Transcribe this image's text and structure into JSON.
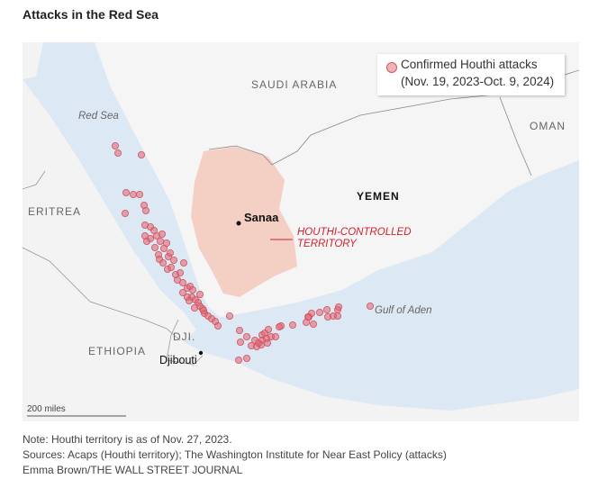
{
  "title": "Attacks in the Red Sea",
  "legend": {
    "line1": "Confirmed Houthi attacks",
    "line2": "(Nov. 19, 2023-Oct. 9, 2024)",
    "marker_color": "#f0b3b8",
    "marker_stroke": "#d25460"
  },
  "labels": {
    "saudi_arabia": "SAUDI ARABIA",
    "oman": "OMAN",
    "red_sea": "Red Sea",
    "eritrea": "ERITREA",
    "yemen": "YEMEN",
    "sanaa": "Sanaa",
    "houthi_1": "HOUTHI-CONTROLLED",
    "houthi_2": "TERRITORY",
    "gulf_of_aden": "Gulf of Aden",
    "ethiopia": "ETHIOPIA",
    "dji": "DJI.",
    "djibouti": "Djibouti",
    "scale": "200 miles"
  },
  "colors": {
    "sea": "#dce8f4",
    "land": "#f5f5f5",
    "houthi_territory": "#f4cfc4",
    "accent": "#d0202e"
  },
  "notes": [
    "Note: Houthi territory is as of Nov. 27, 2023.",
    "Sources: Acaps (Houthi territory); The Washington Institute for Near East Policy (attacks)",
    "Emma Brown/THE WALL STREET JOURNAL"
  ]
}
